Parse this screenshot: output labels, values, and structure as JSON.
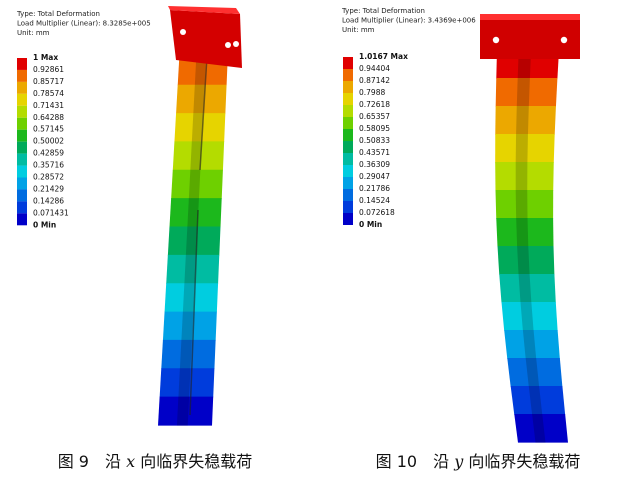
{
  "panels": [
    {
      "header": [
        "Type: Total Deformation",
        "Load Multiplier (Linear): 8.3285e+005",
        "Unit: mm"
      ],
      "legend": [
        "1 Max",
        "0.92861",
        "0.85717",
        "0.78574",
        "0.71431",
        "0.64288",
        "0.57145",
        "0.50002",
        "0.42859",
        "0.35716",
        "0.28572",
        "0.21429",
        "0.14286",
        "0.071431",
        "0 Min"
      ],
      "caption": {
        "figure": "图 9",
        "prefix": "沿",
        "axis": "x",
        "suffix": "向临界失稳载荷"
      }
    },
    {
      "header": [
        "Type: Total Deformation",
        "Load Multiplier (Linear): 3.4369e+006",
        "Unit: mm"
      ],
      "legend": [
        "1.0167 Max",
        "0.94404",
        "0.87142",
        "0.7988",
        "0.72618",
        "0.65357",
        "0.58095",
        "0.50833",
        "0.43571",
        "0.36309",
        "0.29047",
        "0.21786",
        "0.14524",
        "0.072618",
        "0 Min"
      ],
      "caption": {
        "figure": "图 10",
        "prefix": "沿",
        "axis": "y",
        "suffix": "向临界失稳载荷"
      }
    }
  ]
}
